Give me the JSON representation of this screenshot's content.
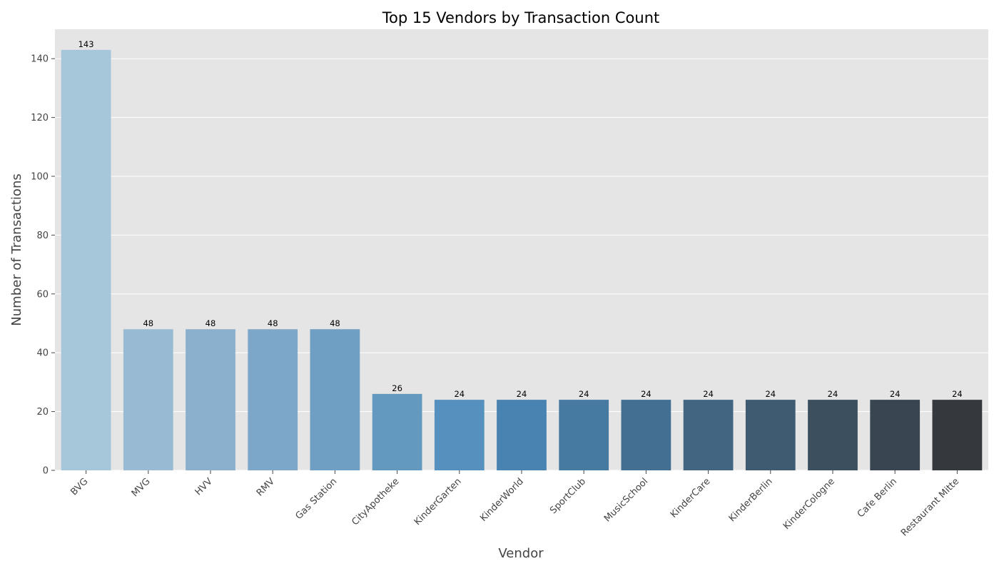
{
  "chart_data": {
    "type": "bar",
    "title": "Top 15 Vendors by Transaction Count",
    "xlabel": "Vendor",
    "ylabel": "Number of Transactions",
    "categories": [
      "BVG",
      "MVG",
      "HVV",
      "RMV",
      "Gas Station",
      "CityApotheke",
      "KinderGarten",
      "KinderWorld",
      "SportClub",
      "MusicSchool",
      "KinderCare",
      "KinderBerlin",
      "KinderCologne",
      "Cafe Berlin",
      "Restaurant Mitte"
    ],
    "values": [
      143,
      48,
      48,
      48,
      48,
      26,
      24,
      24,
      24,
      24,
      24,
      24,
      24,
      24,
      24
    ],
    "value_labels": [
      "143",
      "48",
      "48",
      "48",
      "48",
      "26",
      "24",
      "24",
      "24",
      "24",
      "24",
      "24",
      "24",
      "24",
      "24"
    ],
    "bar_colors": [
      "#a6c6da",
      "#98bad3",
      "#8ab0cd",
      "#7da7c9",
      "#6fa0c4",
      "#6398bf",
      "#5590be",
      "#4883b1",
      "#467aa0",
      "#436f93",
      "#426582",
      "#3f5b71",
      "#3c4f5f",
      "#394551",
      "#35393e"
    ],
    "yticks": [
      "0",
      "20",
      "40",
      "60",
      "80",
      "100",
      "120",
      "140"
    ],
    "ylim": [
      0,
      150
    ],
    "grid": true,
    "background": "#e5e5e5",
    "grid_color": "#ffffff"
  }
}
